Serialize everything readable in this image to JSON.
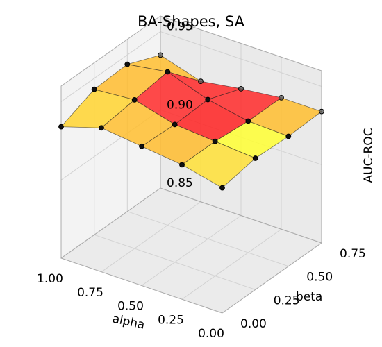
{
  "chart_data": {
    "type": "surface3d",
    "title": "BA-Shapes, SA",
    "xlabel": "alpha",
    "ylabel": "beta",
    "zlabel": "AUC-ROC",
    "alpha": [
      0.0,
      0.25,
      0.5,
      0.75,
      1.0
    ],
    "beta": [
      0.0,
      0.25,
      0.5,
      0.75
    ],
    "x_ticks": [
      "0.00",
      "0.25",
      "0.50",
      "0.75",
      "1.00"
    ],
    "y_ticks": [
      "0.00",
      "0.25",
      "0.50",
      "0.75"
    ],
    "z_ticks": [
      "0.85",
      "0.90",
      "0.95"
    ],
    "xlim": [
      0.0,
      1.0
    ],
    "ylim": [
      0.0,
      0.75
    ],
    "zlim": [
      0.85,
      0.96
    ],
    "z_rows_by_beta": [
      [
        0.93,
        0.936,
        0.939,
        0.942,
        0.934
      ],
      [
        0.934,
        0.936,
        0.938,
        0.945,
        0.943
      ],
      [
        0.933,
        0.934,
        0.939,
        0.948,
        0.944
      ],
      [
        0.934,
        0.934,
        0.931,
        0.927,
        0.935
      ]
    ],
    "cell_colors_by_beta": [
      [
        "#ffe136",
        "#ffbc2e",
        "#ffbe2f",
        "#ffd32f"
      ],
      [
        "#ffff33",
        "#ff2222",
        "#ff2a2a",
        "#ffbc2e"
      ],
      [
        "#ffbe2f",
        "#ff2a2a",
        "#ff2828",
        "#ffbe2f"
      ],
      [
        "#ffe436",
        "#ff9a28",
        "#ffbc2e",
        "#ffe136"
      ]
    ],
    "grid": true
  }
}
